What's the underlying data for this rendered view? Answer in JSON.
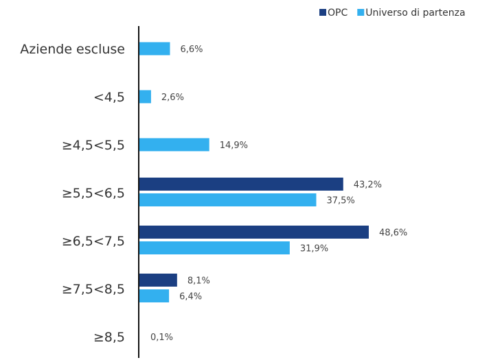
{
  "chart_data": {
    "type": "bar",
    "orientation": "horizontal",
    "categories": [
      "Aziende escluse",
      "<4,5",
      "≥4,5<5,5",
      "≥5,5<6,5",
      "≥6,5<7,5",
      "≥7,5<8,5",
      "≥8,5"
    ],
    "series": [
      {
        "name": "OPC",
        "color": "#1b3f82",
        "values": [
          null,
          null,
          null,
          43.2,
          48.6,
          8.1,
          null
        ],
        "labels": [
          "",
          "",
          "",
          "43,2%",
          "48,6%",
          "8,1%",
          ""
        ]
      },
      {
        "name": "Universo di partenza",
        "color": "#33b0ef",
        "values": [
          6.6,
          2.6,
          14.9,
          37.5,
          31.9,
          6.4,
          0.1
        ],
        "labels": [
          "6,6%",
          "2,6%",
          "14,9%",
          "37,5%",
          "31,9%",
          "6,4%",
          "0,1%"
        ]
      }
    ],
    "title": "",
    "xlabel": "",
    "ylabel": "",
    "xlim": [
      0,
      65
    ],
    "grid": false,
    "legend_position": "top-right"
  }
}
